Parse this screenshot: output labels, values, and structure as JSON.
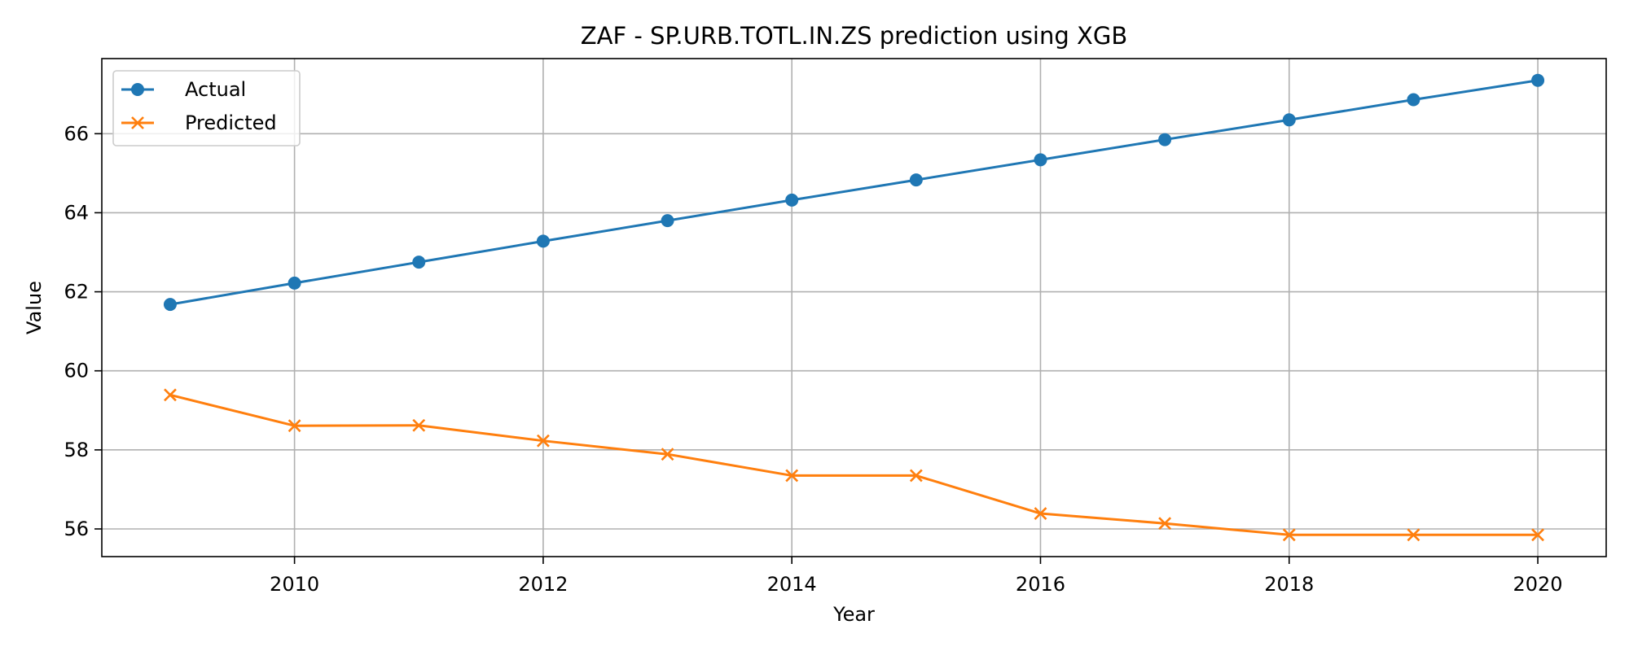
{
  "chart_data": {
    "type": "line",
    "title": "ZAF - SP.URB.TOTL.IN.ZS prediction using XGB",
    "xlabel": "Year",
    "ylabel": "Value",
    "x": [
      2009,
      2010,
      2011,
      2012,
      2013,
      2014,
      2015,
      2016,
      2017,
      2018,
      2019,
      2020
    ],
    "xlim": [
      2008.45,
      2020.55
    ],
    "ylim": [
      55.3,
      67.9
    ],
    "xticks": [
      2010,
      2012,
      2014,
      2016,
      2018,
      2020
    ],
    "yticks": [
      56,
      58,
      60,
      62,
      64,
      66
    ],
    "grid": true,
    "legend_position": "top-left",
    "series": [
      {
        "name": "Actual",
        "color": "#1f77b4",
        "marker": "circle",
        "values": [
          61.68,
          62.22,
          62.75,
          63.28,
          63.8,
          64.32,
          64.83,
          65.34,
          65.85,
          66.35,
          66.86,
          67.35
        ]
      },
      {
        "name": "Predicted",
        "color": "#ff7f0e",
        "marker": "x",
        "values": [
          59.39,
          58.61,
          58.62,
          58.23,
          57.89,
          57.35,
          57.35,
          56.39,
          56.14,
          55.85,
          55.85,
          55.85
        ]
      }
    ]
  }
}
